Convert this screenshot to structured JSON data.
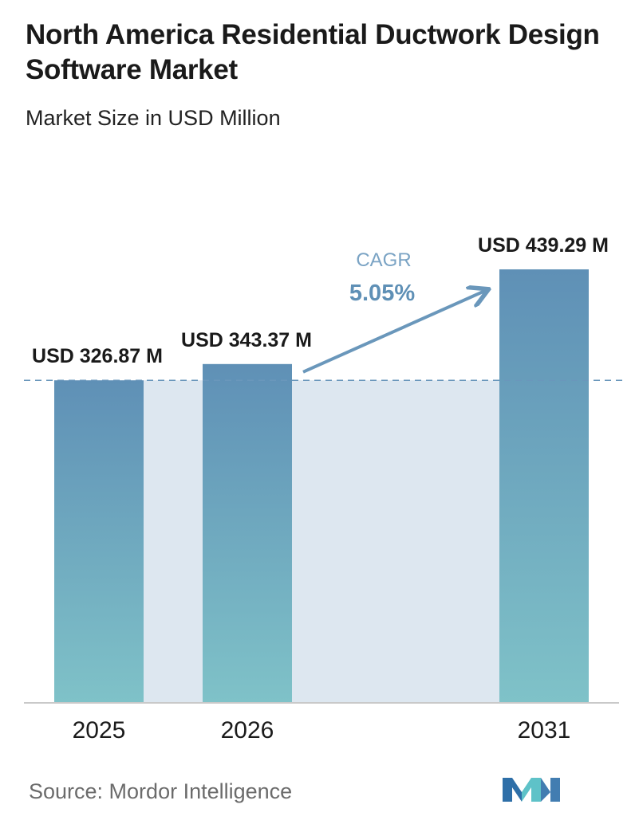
{
  "header": {
    "title": "North America Residential Ductwork Design Software Market",
    "subtitle": "Market Size in USD Million"
  },
  "chart_data": {
    "type": "bar",
    "categories": [
      "2025",
      "2026",
      "2031"
    ],
    "values": [
      326.87,
      343.37,
      439.29
    ],
    "value_labels": [
      "USD 326.87 M",
      "USD 343.37 M",
      "USD 439.29 M"
    ],
    "title": "North America Residential Ductwork Design Software Market",
    "subtitle": "Market Size in USD Million",
    "xlabel": "",
    "ylabel": "",
    "ylim": [
      0,
      470
    ],
    "grid": false,
    "legend": "none",
    "annotation": {
      "label": "CAGR",
      "value": "5.05%"
    },
    "colors": {
      "bar_top": "#5f90b6",
      "bar_bottom": "#7fc2c8",
      "band": "#dde7f0",
      "arrow": "#6a97bb",
      "cagr_label": "#7aa3c4",
      "cagr_value": "#5f90b6",
      "dashed_line": "#6a97bb"
    }
  },
  "footer": {
    "source": "Source:  Mordor Intelligence",
    "logo_icon": "mordor-intelligence-logo-icon",
    "logo_colors": [
      "#2e6fa8",
      "#5ec2c8"
    ]
  }
}
